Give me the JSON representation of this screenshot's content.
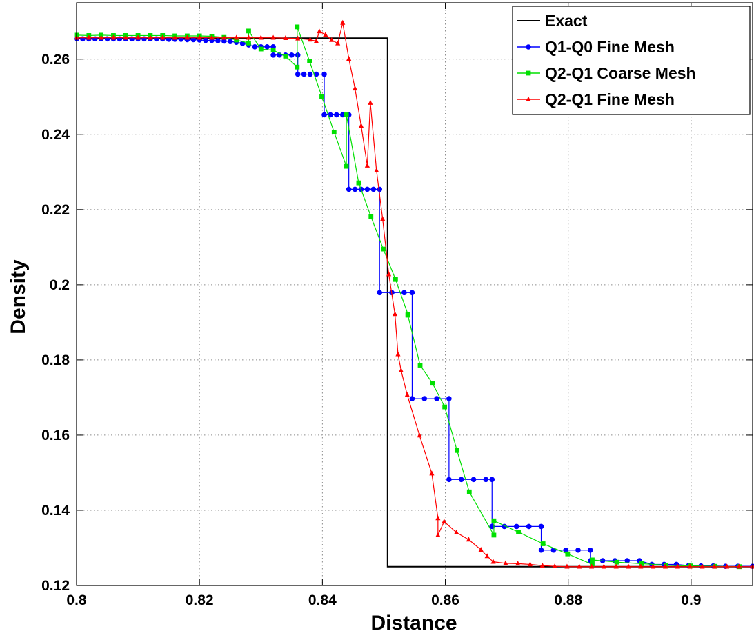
{
  "chart_data": {
    "type": "line",
    "title": "",
    "xlabel": "Distance",
    "ylabel": "Density",
    "xlim": [
      0.8,
      0.91
    ],
    "ylim": [
      0.12,
      0.275
    ],
    "xticks": [
      0.8,
      0.82,
      0.84,
      0.86,
      0.88,
      0.9
    ],
    "xtick_labels": [
      "0.8",
      "0.82",
      "0.84",
      "0.86",
      "0.88",
      "0.9"
    ],
    "yticks": [
      0.12,
      0.14,
      0.16,
      0.18,
      0.2,
      0.22,
      0.24,
      0.26
    ],
    "ytick_labels": [
      "0.12",
      "0.14",
      "0.16",
      "0.18",
      "0.2",
      "0.22",
      "0.24",
      "0.26"
    ],
    "grid": true,
    "legend_position": "top-right",
    "series": [
      {
        "name": "Exact",
        "color": "#000000",
        "marker": "none",
        "x": [
          0.8,
          0.8506,
          0.8506,
          0.91
        ],
        "y": [
          0.2656,
          0.2656,
          0.125,
          0.125
        ]
      },
      {
        "name": "Q1-Q0 Fine Mesh",
        "color": "#0000ff",
        "marker": "circle",
        "x": [
          0.8,
          0.801,
          0.802,
          0.803,
          0.804,
          0.805,
          0.806,
          0.807,
          0.808,
          0.809,
          0.81,
          0.811,
          0.812,
          0.813,
          0.814,
          0.815,
          0.816,
          0.817,
          0.818,
          0.819,
          0.82,
          0.821,
          0.822,
          0.823,
          0.824,
          0.825,
          0.826,
          0.827,
          0.828,
          0.829,
          0.83,
          0.831,
          0.832,
          0.832,
          0.833,
          0.834,
          0.835,
          0.836,
          0.836,
          0.837,
          0.838,
          0.839,
          0.8403,
          0.8403,
          0.8413,
          0.8423,
          0.8433,
          0.8443,
          0.8443,
          0.8453,
          0.8463,
          0.8473,
          0.8483,
          0.8493,
          0.8493,
          0.8513,
          0.8533,
          0.8546,
          0.8546,
          0.8566,
          0.8586,
          0.8606,
          0.8606,
          0.8626,
          0.8646,
          0.8666,
          0.8676,
          0.8676,
          0.8696,
          0.8716,
          0.8736,
          0.8756,
          0.8756,
          0.8776,
          0.8796,
          0.8816,
          0.8836,
          0.8836,
          0.8856,
          0.8876,
          0.8896,
          0.8916,
          0.8936,
          0.8956,
          0.8976,
          0.8996,
          0.9016,
          0.9036,
          0.9056,
          0.9076,
          0.91
        ],
        "y": [
          0.2654,
          0.2654,
          0.2654,
          0.2654,
          0.2654,
          0.2654,
          0.2654,
          0.2654,
          0.2654,
          0.2654,
          0.2654,
          0.2654,
          0.2654,
          0.2654,
          0.2654,
          0.2653,
          0.2653,
          0.2653,
          0.2652,
          0.2652,
          0.2651,
          0.265,
          0.265,
          0.2649,
          0.2648,
          0.2647,
          0.2645,
          0.2642,
          0.2638,
          0.2633,
          0.2633,
          0.2633,
          0.2633,
          0.2611,
          0.2611,
          0.2611,
          0.2611,
          0.2611,
          0.256,
          0.256,
          0.256,
          0.256,
          0.256,
          0.2452,
          0.2452,
          0.2452,
          0.2452,
          0.2452,
          0.2254,
          0.2254,
          0.2254,
          0.2254,
          0.2254,
          0.2254,
          0.1979,
          0.1979,
          0.1979,
          0.1979,
          0.1697,
          0.1697,
          0.1697,
          0.1697,
          0.1482,
          0.1482,
          0.1482,
          0.1482,
          0.1482,
          0.1357,
          0.1357,
          0.1357,
          0.1357,
          0.1357,
          0.1294,
          0.1294,
          0.1294,
          0.1294,
          0.1294,
          0.1266,
          0.1266,
          0.1266,
          0.1266,
          0.1266,
          0.1256,
          0.1256,
          0.1256,
          0.1253,
          0.1252,
          0.1252,
          0.1251,
          0.1251,
          0.1251
        ]
      },
      {
        "name": "Q2-Q1 Coarse Mesh",
        "color": "#00e000",
        "marker": "square",
        "x": [
          0.8,
          0.802,
          0.804,
          0.806,
          0.808,
          0.81,
          0.812,
          0.814,
          0.816,
          0.818,
          0.82,
          0.822,
          0.824,
          0.826,
          0.828,
          0.828,
          0.83,
          0.832,
          0.834,
          0.8359,
          0.8359,
          0.8379,
          0.8399,
          0.8419,
          0.8439,
          0.8439,
          0.8459,
          0.8479,
          0.8499,
          0.8519,
          0.8539,
          0.8539,
          0.8559,
          0.8579,
          0.8599,
          0.8619,
          0.8639,
          0.8679,
          0.8679,
          0.8719,
          0.8759,
          0.8799,
          0.8839,
          0.8839,
          0.8879,
          0.8919,
          0.8959,
          0.8999,
          0.9039,
          0.9079
        ],
        "y": [
          0.2664,
          0.2663,
          0.2664,
          0.2663,
          0.2663,
          0.2663,
          0.2663,
          0.2663,
          0.2662,
          0.2662,
          0.2662,
          0.2661,
          0.2658,
          0.2651,
          0.2643,
          0.2675,
          0.2627,
          0.2624,
          0.2608,
          0.2579,
          0.2686,
          0.2595,
          0.2501,
          0.2406,
          0.2315,
          0.2452,
          0.2271,
          0.2181,
          0.2095,
          0.2014,
          0.1922,
          0.1919,
          0.1786,
          0.1738,
          0.1675,
          0.1559,
          0.1449,
          0.1334,
          0.1372,
          0.1342,
          0.1311,
          0.1284,
          0.1256,
          0.1268,
          0.1262,
          0.1258,
          0.1254,
          0.1252,
          0.1251,
          0.125
        ]
      },
      {
        "name": "Q2-Q1 Fine Mesh",
        "color": "#ff0000",
        "marker": "triangle",
        "x": [
          0.8,
          0.802,
          0.804,
          0.806,
          0.808,
          0.81,
          0.812,
          0.814,
          0.816,
          0.818,
          0.82,
          0.822,
          0.824,
          0.826,
          0.828,
          0.83,
          0.832,
          0.834,
          0.836,
          0.838,
          0.839,
          0.8395,
          0.8405,
          0.8415,
          0.8425,
          0.8433,
          0.8443,
          0.8453,
          0.8463,
          0.8473,
          0.8478,
          0.8488,
          0.8498,
          0.8508,
          0.8518,
          0.8523,
          0.8528,
          0.8538,
          0.8558,
          0.8578,
          0.8588,
          0.8588,
          0.8598,
          0.8618,
          0.8638,
          0.8658,
          0.8668,
          0.8678,
          0.8698,
          0.8718,
          0.8738,
          0.8758,
          0.8778,
          0.8798,
          0.8818,
          0.8838,
          0.8858,
          0.8878,
          0.8898,
          0.8918,
          0.8938,
          0.8958,
          0.8978,
          0.8998,
          0.9018,
          0.9038,
          0.9058,
          0.9078,
          0.91
        ],
        "y": [
          0.2657,
          0.2657,
          0.2657,
          0.2657,
          0.2657,
          0.2657,
          0.2657,
          0.2657,
          0.2657,
          0.2657,
          0.2657,
          0.2657,
          0.2657,
          0.2657,
          0.2657,
          0.2657,
          0.2657,
          0.2656,
          0.2655,
          0.2652,
          0.2648,
          0.2674,
          0.2665,
          0.2651,
          0.2642,
          0.2697,
          0.2601,
          0.2522,
          0.2423,
          0.2317,
          0.2484,
          0.2304,
          0.2175,
          0.2028,
          0.1922,
          0.1815,
          0.1772,
          0.1707,
          0.1599,
          0.1498,
          0.1379,
          0.1334,
          0.137,
          0.1341,
          0.1322,
          0.1295,
          0.1278,
          0.1263,
          0.1259,
          0.1258,
          0.1256,
          0.1253,
          0.1251,
          0.125,
          0.125,
          0.125,
          0.125,
          0.125,
          0.125,
          0.125,
          0.125,
          0.125,
          0.125,
          0.125,
          0.125,
          0.125,
          0.125,
          0.125,
          0.125
        ]
      }
    ]
  }
}
